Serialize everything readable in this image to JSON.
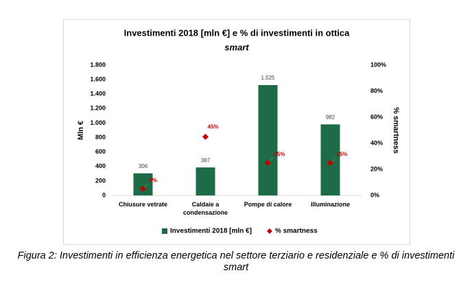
{
  "chart_data": {
    "type": "bar",
    "title": "Investimenti 2018 [mln €] e % di investimenti in ottica",
    "title_emphasis": "smart",
    "ylabel": "Mln €",
    "y2label": "% smartness",
    "categories": [
      "Chiusure vetrate",
      "Caldaie a condensazione",
      "Pompe di calore",
      "Illuminazione"
    ],
    "series": [
      {
        "name": "Investimenti 2018 [mln €]",
        "type": "bar",
        "color": "#1e6b47",
        "values": [
          306,
          387,
          1525,
          982
        ],
        "value_labels": [
          "306",
          "387",
          "1.525",
          "982"
        ]
      },
      {
        "name": "% smartness",
        "type": "scatter",
        "axis": "y2",
        "color": "#c00000",
        "values": [
          5,
          45,
          25,
          25
        ],
        "value_labels": [
          "5%",
          "45%",
          "25%",
          "25%"
        ]
      }
    ],
    "ylim": [
      0,
      1800
    ],
    "yticks": [
      0,
      200,
      400,
      600,
      800,
      {
        "value": 1000,
        "label": "1.000"
      },
      {
        "value": 1200,
        "label": "1.200"
      },
      {
        "value": 1400,
        "label": "1.400"
      },
      {
        "value": 1600,
        "label": "1.600"
      },
      {
        "value": 1800,
        "label": "1.800"
      }
    ],
    "y2lim": [
      0,
      100
    ],
    "y2ticks": [
      {
        "value": 0,
        "label": "0%"
      },
      {
        "value": 20,
        "label": "20%"
      },
      {
        "value": 40,
        "label": "40%"
      },
      {
        "value": 60,
        "label": "60%"
      },
      {
        "value": 80,
        "label": "80%"
      },
      {
        "value": 100,
        "label": "100%"
      }
    ],
    "legend": "bottom"
  },
  "caption": "Figura 2: Investimenti in efficienza energetica nel settore terziario e residenziale e % di investimenti smart"
}
